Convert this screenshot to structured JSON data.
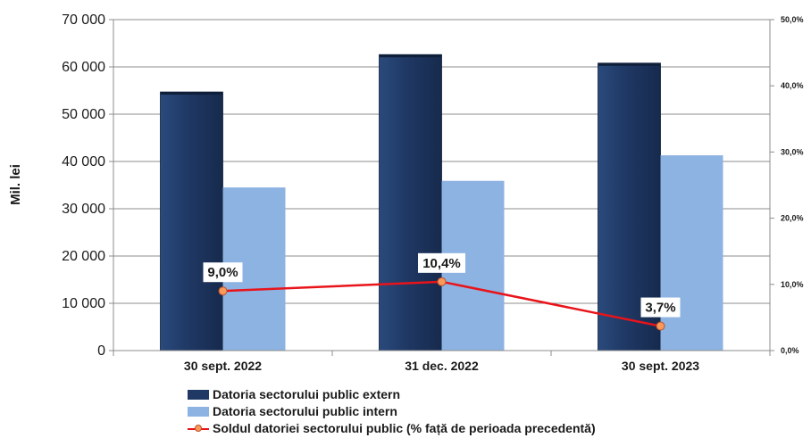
{
  "chart_data": {
    "type": "bar",
    "categories": [
      "30 sept. 2022",
      "31 dec. 2022",
      "30 sept. 2023"
    ],
    "series": [
      {
        "name": "Datoria sectorului public extern",
        "type": "bar",
        "axis": "left",
        "values": [
          54700,
          62600,
          60800
        ],
        "color": "#1f3864"
      },
      {
        "name": "Datoria sectorului public intern",
        "type": "bar",
        "axis": "left",
        "values": [
          34500,
          35900,
          41300
        ],
        "color": "#8db3e2"
      },
      {
        "name": "Soldul datoriei sectorului public (% față de perioada precedentă)",
        "type": "line",
        "axis": "right",
        "values": [
          9.0,
          10.4,
          3.7
        ],
        "labels": [
          "9,0%",
          "10,4%",
          "3,7%"
        ],
        "color": "#e8141a"
      }
    ],
    "ylabel": "Mil. lei",
    "ylim": [
      0,
      70000
    ],
    "yticks": [
      0,
      10000,
      20000,
      30000,
      40000,
      50000,
      60000,
      70000
    ],
    "ytick_labels": [
      "0",
      "10 000",
      "20 000",
      "30 000",
      "40 000",
      "50 000",
      "60 000",
      "70 000"
    ],
    "y2lim": [
      0,
      50
    ],
    "y2ticks": [
      0,
      10,
      20,
      30,
      40,
      50
    ],
    "y2tick_labels": [
      "0,0%",
      "10,0%",
      "20,0%",
      "30,0%",
      "40,0%",
      "50,0%"
    ],
    "grid": true,
    "legend_position": "bottom"
  }
}
